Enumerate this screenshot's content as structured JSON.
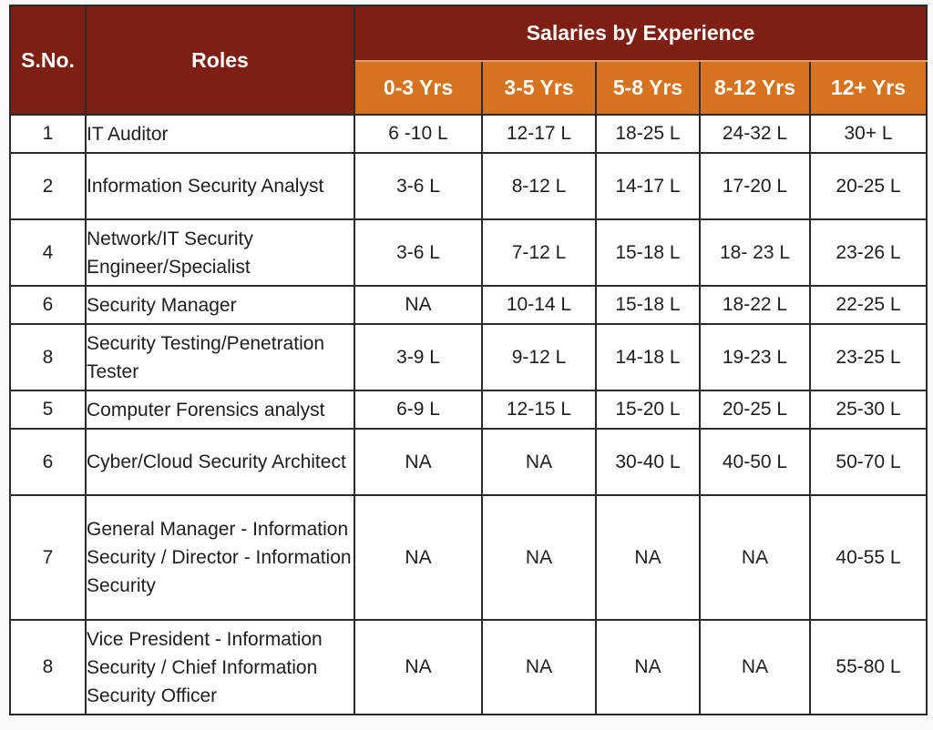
{
  "header": {
    "sno": "S.No.",
    "roles": "Roles",
    "group": "Salaries by Experience",
    "columns": [
      "0-3 Yrs",
      "3-5 Yrs",
      "5-8 Yrs",
      "8-12 Yrs",
      "12+ Yrs"
    ]
  },
  "rows": [
    {
      "sno": "1",
      "role": "IT Auditor",
      "values": [
        "6 -10 L",
        "12-17 L",
        "18-25 L",
        "24-32 L",
        "30+ L"
      ]
    },
    {
      "sno": "2",
      "role": "Information Security Analyst",
      "values": [
        "3-6 L",
        "8-12 L",
        "14-17 L",
        "17-20 L",
        "20-25 L"
      ]
    },
    {
      "sno": "4",
      "role": "Network/IT Security Engineer/Specialist",
      "values": [
        "3-6 L",
        "7-12 L",
        "15-18 L",
        "18- 23 L",
        "23-26 L"
      ]
    },
    {
      "sno": "6",
      "role": "Security Manager",
      "values": [
        "NA",
        "10-14 L",
        "15-18 L",
        "18-22 L",
        "22-25 L"
      ]
    },
    {
      "sno": "8",
      "role": "Security Testing/Penetration Tester",
      "values": [
        "3-9 L",
        "9-12 L",
        "14-18 L",
        "19-23 L",
        "23-25 L"
      ]
    },
    {
      "sno": "5",
      "role": "Computer Forensics analyst",
      "values": [
        "6-9 L",
        "12-15 L",
        "15-20 L",
        "20-25 L",
        "25-30 L"
      ]
    },
    {
      "sno": "6",
      "role": "Cyber/Cloud Security Architect",
      "values": [
        "NA",
        "NA",
        "30-40 L",
        "40-50 L",
        "50-70 L"
      ]
    },
    {
      "sno": "7",
      "role": "General Manager - Information Security / Director - Information Security",
      "values": [
        "NA",
        "NA",
        "NA",
        "NA",
        "40-55 L"
      ]
    },
    {
      "sno": "8",
      "role": "Vice President - Information Security / Chief Information Security Officer",
      "values": [
        "NA",
        "NA",
        "NA",
        "NA",
        "55-80 L"
      ]
    }
  ]
}
